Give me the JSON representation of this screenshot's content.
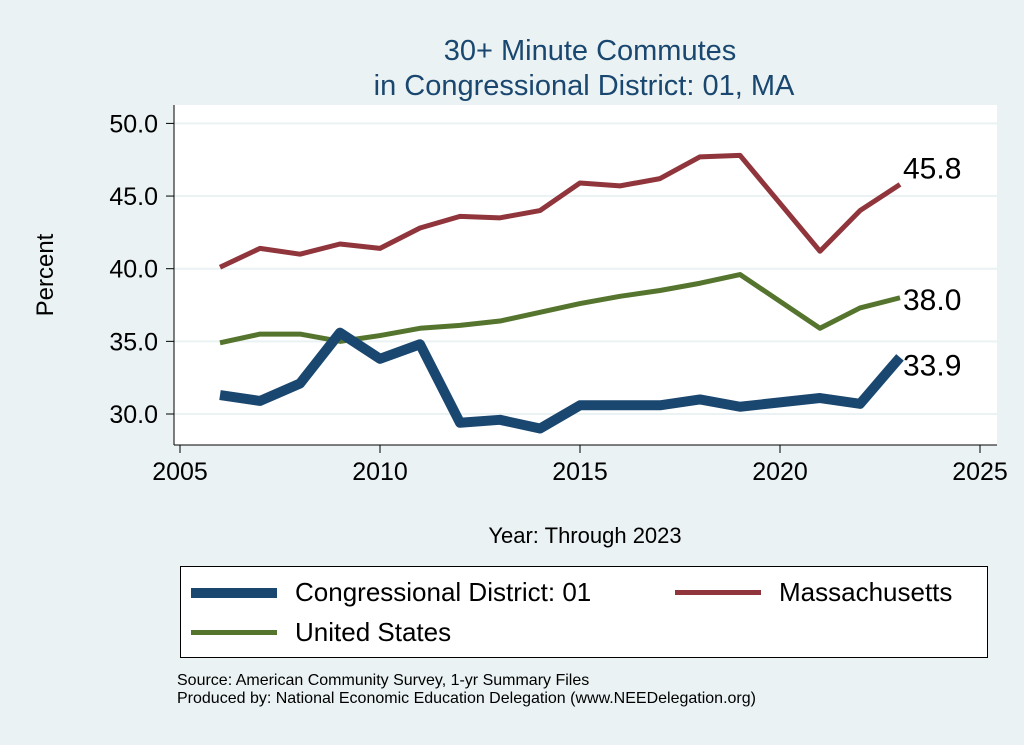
{
  "chart_data": {
    "type": "line",
    "title": [
      "30+ Minute Commutes",
      "in Congressional District:  01, MA"
    ],
    "xlabel": "Year: Through 2023",
    "ylabel": "Percent",
    "xlim": [
      2005,
      2025
    ],
    "ylim": [
      28.5,
      50.5
    ],
    "xticks": [
      "2005",
      "2010",
      "2015",
      "2020",
      "2025"
    ],
    "yticks": [
      "30.0",
      "35.0",
      "40.0",
      "45.0",
      "50.0"
    ],
    "x": [
      2006,
      2007,
      2008,
      2009,
      2010,
      2011,
      2012,
      2013,
      2014,
      2015,
      2016,
      2017,
      2018,
      2019,
      2021,
      2022,
      2023
    ],
    "series": [
      {
        "name": "Congressional District:  01",
        "color": "#1a476f",
        "end_label": "33.9",
        "values": [
          31.3,
          30.9,
          32.1,
          35.6,
          33.8,
          34.8,
          29.4,
          29.6,
          29.0,
          30.6,
          30.6,
          30.6,
          31.0,
          30.5,
          31.1,
          30.7,
          33.9
        ]
      },
      {
        "name": "Massachusetts",
        "color": "#90353b",
        "end_label": "45.8",
        "values": [
          40.1,
          41.4,
          41.0,
          41.7,
          41.4,
          42.8,
          43.6,
          43.5,
          44.0,
          45.9,
          45.7,
          46.2,
          47.7,
          47.8,
          41.2,
          44.0,
          45.8
        ]
      },
      {
        "name": "United States",
        "color": "#55752f",
        "end_label": "38.0",
        "values": [
          34.9,
          35.5,
          35.5,
          35.0,
          35.4,
          35.9,
          36.1,
          36.4,
          37.0,
          37.6,
          38.1,
          38.5,
          39.0,
          39.6,
          35.9,
          37.3,
          38.0
        ]
      }
    ],
    "legend": "bottom",
    "grid": true
  },
  "source": [
    "Source: American Community Survey, 1-yr Summary Files",
    "Produced by: National Economic Education Delegation (www.NEEDelegation.org)"
  ]
}
